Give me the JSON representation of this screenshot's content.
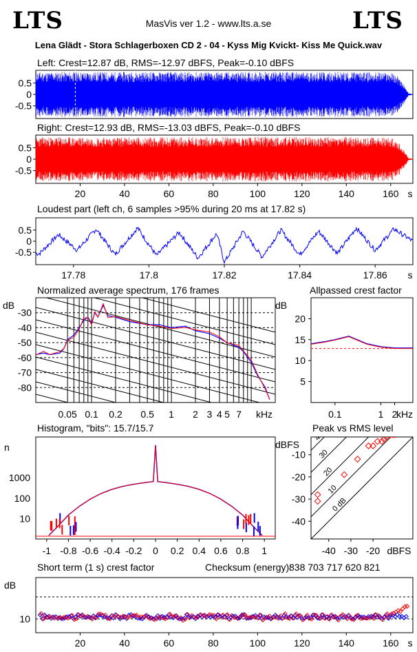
{
  "header": {
    "logo_left": "LTS",
    "logo_right": "LTS",
    "version": "MasVis ver 1.2 - www.lts.a.se",
    "file": "Lena Glädt - Stora Schlagerboxen CD 2 - 04 - Kyss Mig Kvickt- Kiss Me Quick.wav"
  },
  "colors": {
    "left": "#0000ff",
    "right": "#ff0000",
    "axis": "#000000",
    "purple": "#800080"
  },
  "chart_data": [
    {
      "id": "left",
      "type": "area",
      "title": "Left: Crest=12.87 dB, RMS=-12.97 dBFS, Peak=-0.10 dBFS",
      "yticks": [
        "0.5",
        "0",
        "-0.5"
      ],
      "ylim": [
        -1,
        1
      ],
      "xlim": [
        0,
        170
      ],
      "marker_s": 17.82,
      "envelope": [
        [
          0,
          0.98
        ],
        [
          40,
          0.98
        ],
        [
          80,
          0.98
        ],
        [
          125,
          0.98
        ],
        [
          160,
          0.96
        ],
        [
          163,
          0.8
        ],
        [
          166,
          0.4
        ],
        [
          168,
          0.05
        ],
        [
          170,
          0.02
        ]
      ]
    },
    {
      "id": "right",
      "type": "area",
      "title": "Right: Crest=12.93 dB, RMS=-13.03 dBFS, Peak=-0.10 dBFS",
      "yticks": [
        "0.5",
        "0",
        "-0.5"
      ],
      "ylim": [
        -1,
        1
      ],
      "xlim": [
        0,
        170
      ],
      "xticks": [
        "20",
        "40",
        "60",
        "80",
        "100",
        "120",
        "140",
        "160"
      ],
      "xunit": "s",
      "envelope": [
        [
          0,
          0.96
        ],
        [
          40,
          0.96
        ],
        [
          80,
          0.97
        ],
        [
          125,
          0.97
        ],
        [
          160,
          0.95
        ],
        [
          163,
          0.8
        ],
        [
          166,
          0.4
        ],
        [
          168,
          0.05
        ],
        [
          170,
          0.02
        ]
      ]
    },
    {
      "id": "loudest",
      "type": "line",
      "title": "Loudest part (left  ch, 6 samples >95% during 20 ms at 17.82 s)",
      "yticks": [
        "0.5",
        "0",
        "-0.5"
      ],
      "ylim": [
        -1,
        1
      ],
      "xlim": [
        17.77,
        17.87
      ],
      "xticks": [
        "17.78",
        "17.8",
        "17.82",
        "17.84",
        "17.86"
      ],
      "xunit": "s",
      "anchors": [
        [
          17.771,
          -0.55
        ],
        [
          17.776,
          0.3
        ],
        [
          17.781,
          -0.4
        ],
        [
          17.786,
          0.55
        ],
        [
          17.791,
          -0.6
        ],
        [
          17.797,
          0.6
        ],
        [
          17.802,
          -0.65
        ],
        [
          17.808,
          0.4
        ],
        [
          17.813,
          -0.75
        ],
        [
          17.818,
          0.35
        ],
        [
          17.82,
          -0.95
        ],
        [
          17.825,
          0.45
        ],
        [
          17.83,
          -0.7
        ],
        [
          17.835,
          0.5
        ],
        [
          17.84,
          -0.6
        ],
        [
          17.845,
          0.45
        ],
        [
          17.85,
          -0.55
        ],
        [
          17.855,
          0.6
        ],
        [
          17.86,
          -0.4
        ],
        [
          17.865,
          0.55
        ],
        [
          17.87,
          0.0
        ]
      ]
    },
    {
      "id": "spectrum",
      "type": "line",
      "title": "Normalized average spectrum, 176 frames",
      "ylabel": "dB",
      "yticks": [
        "-30",
        "-40",
        "-50",
        "-60",
        "-70",
        "-80"
      ],
      "ylim": [
        -90,
        -20
      ],
      "xlim": [
        0.02,
        20
      ],
      "xscale": "log",
      "xticks": [
        "0.05",
        "0.1",
        "0.2",
        "0.5",
        "1",
        "2",
        "3",
        "4",
        "5",
        "7"
      ],
      "xunit": "kHz",
      "points": [
        [
          0.02,
          -58
        ],
        [
          0.025,
          -57
        ],
        [
          0.03,
          -58
        ],
        [
          0.04,
          -57
        ],
        [
          0.045,
          -54
        ],
        [
          0.05,
          -48
        ],
        [
          0.06,
          -45
        ],
        [
          0.07,
          -40
        ],
        [
          0.08,
          -35
        ],
        [
          0.09,
          -33
        ],
        [
          0.1,
          -37
        ],
        [
          0.11,
          -30
        ],
        [
          0.12,
          -33
        ],
        [
          0.14,
          -25
        ],
        [
          0.16,
          -32
        ],
        [
          0.2,
          -33
        ],
        [
          0.3,
          -36
        ],
        [
          0.5,
          -38
        ],
        [
          0.7,
          -38
        ],
        [
          1,
          -40
        ],
        [
          1.5,
          -39
        ],
        [
          2,
          -42
        ],
        [
          3,
          -44
        ],
        [
          4,
          -47
        ],
        [
          5,
          -50
        ],
        [
          7,
          -53
        ],
        [
          8,
          -56
        ],
        [
          10,
          -63
        ],
        [
          12,
          -72
        ],
        [
          15,
          -80
        ],
        [
          17,
          -88
        ]
      ]
    },
    {
      "id": "allpass",
      "type": "line",
      "title": "Allpassed crest factor",
      "ylabel": "dB",
      "yticks": [
        "20",
        "15",
        "10",
        "5"
      ],
      "ylim": [
        0,
        25
      ],
      "xlim": [
        0.03,
        5
      ],
      "xscale": "log",
      "xticks": [
        "0.1",
        "1",
        "2"
      ],
      "xunit": "kHz",
      "reference_db": 12.9,
      "series": [
        {
          "points": [
            [
              0.03,
              14
            ],
            [
              0.06,
              14.5
            ],
            [
              0.1,
              15
            ],
            [
              0.2,
              15.8
            ],
            [
              0.5,
              14
            ],
            [
              1,
              13.3
            ],
            [
              2,
              13
            ],
            [
              5,
              13
            ]
          ]
        }
      ]
    },
    {
      "id": "histogram",
      "type": "line",
      "title": "Histogram, \"bits\": 15.7/15.7",
      "ylabel": "n",
      "yticks": [
        "1000",
        "100",
        "10"
      ],
      "yscale": "log",
      "ylim": [
        1,
        100000
      ],
      "xlim": [
        -1.1,
        1.1
      ],
      "xticks": [
        "-1",
        "-0.8",
        "-0.6",
        "-0.4",
        "-0.2",
        "0",
        "0.2",
        "0.4",
        "0.6",
        "0.8",
        "1"
      ],
      "points": [
        [
          -0.98,
          1.5
        ],
        [
          -0.9,
          4
        ],
        [
          -0.8,
          15
        ],
        [
          -0.7,
          40
        ],
        [
          -0.6,
          90
        ],
        [
          -0.5,
          170
        ],
        [
          -0.4,
          270
        ],
        [
          -0.3,
          380
        ],
        [
          -0.2,
          480
        ],
        [
          -0.1,
          580
        ],
        [
          -0.02,
          650
        ],
        [
          0,
          40000
        ],
        [
          0.02,
          650
        ],
        [
          0.1,
          580
        ],
        [
          0.2,
          480
        ],
        [
          0.3,
          380
        ],
        [
          0.4,
          270
        ],
        [
          0.5,
          170
        ],
        [
          0.6,
          90
        ],
        [
          0.7,
          40
        ],
        [
          0.8,
          15
        ],
        [
          0.9,
          4
        ],
        [
          0.98,
          1.5
        ]
      ]
    },
    {
      "id": "peak_rms",
      "type": "scatter",
      "title": "Peak vs RMS level",
      "ylabel": "dBFS",
      "yticks": [
        "-10",
        "-20",
        "-30",
        "-40"
      ],
      "xticks": [
        "-40",
        "-30",
        "-20"
      ],
      "xunit": "dBFS",
      "xlim": [
        -48,
        -2
      ],
      "ylim": [
        -48,
        -2
      ],
      "diagonal_labels": [
        "40",
        "30",
        "20",
        "10",
        "0 dB"
      ],
      "points": [
        [
          -14,
          -2
        ],
        [
          -13,
          -1
        ],
        [
          -12,
          -1
        ],
        [
          -11,
          -1
        ],
        [
          -10,
          -1
        ],
        [
          -15,
          -3
        ],
        [
          -16,
          -4
        ],
        [
          -18,
          -4
        ],
        [
          -20,
          -6
        ],
        [
          -22,
          -6
        ],
        [
          -27,
          -12
        ],
        [
          -33,
          -19
        ],
        [
          -45,
          -31
        ],
        [
          -45,
          -28
        ]
      ]
    },
    {
      "id": "crest",
      "type": "scatter",
      "title": "Short term (1 s) crest factor",
      "ylabel": "dB",
      "yticks": [
        "10"
      ],
      "ylim": [
        5,
        25
      ],
      "reference_lines": [
        10,
        18
      ],
      "xlim": [
        0,
        170
      ],
      "xticks": [
        "20",
        "40",
        "60",
        "80",
        "100",
        "120",
        "140",
        "160"
      ],
      "xunit": "s",
      "checksum_label": "Checksum (energy):",
      "checksum_value": "838 703 717 620 821"
    }
  ]
}
